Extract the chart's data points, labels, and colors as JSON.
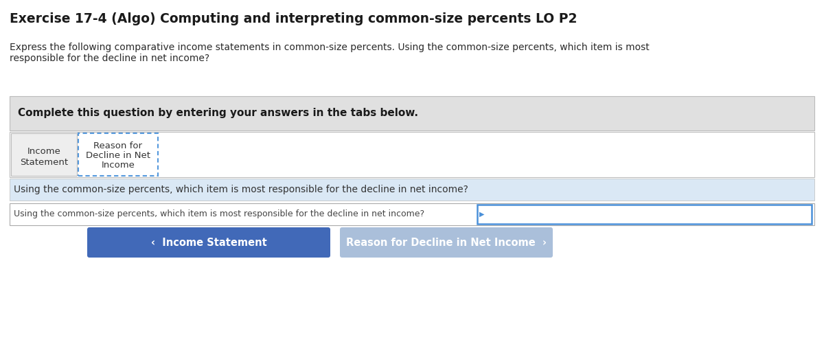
{
  "title": "Exercise 17-4 (Algo) Computing and interpreting common-size percents LO P2",
  "description_line1": "Express the following comparative income statements in common-size percents. Using the common-size percents, which item is most",
  "description_line2": "responsible for the decline in net income?",
  "complete_text": "Complete this question by entering your answers in the tabs below.",
  "tab1_line1": "Income",
  "tab1_line2": "Statement",
  "tab2_line1": "Reason for",
  "tab2_line2": "Decline in Net",
  "tab2_line3": "Income",
  "blue_banner_text": "Using the common-size percents, which item is most responsible for the decline in net income?",
  "input_text": "Using the common-size percents, which item is most responsible for the decline in net income?",
  "btn1_text": "‹  Income Statement",
  "btn2_text": "Reason for Decline in Net Income  ›",
  "bg_color": "#ffffff",
  "gray_box_color": "#e0e0e0",
  "tab1_bg": "#eeeeee",
  "tab2_bg": "#ffffff",
  "tab2_border_color": "#5599dd",
  "blue_banner_bg": "#dae8f5",
  "input_border_color": "#aaaaaa",
  "input_right_border_color": "#4a90d9",
  "btn1_color": "#4169b8",
  "btn2_color": "#aabfda",
  "title_fontsize": 13.5,
  "body_fontsize": 10,
  "complete_fontsize": 11,
  "tab_fontsize": 9.5,
  "banner_fontsize": 10,
  "btn_fontsize": 10.5
}
